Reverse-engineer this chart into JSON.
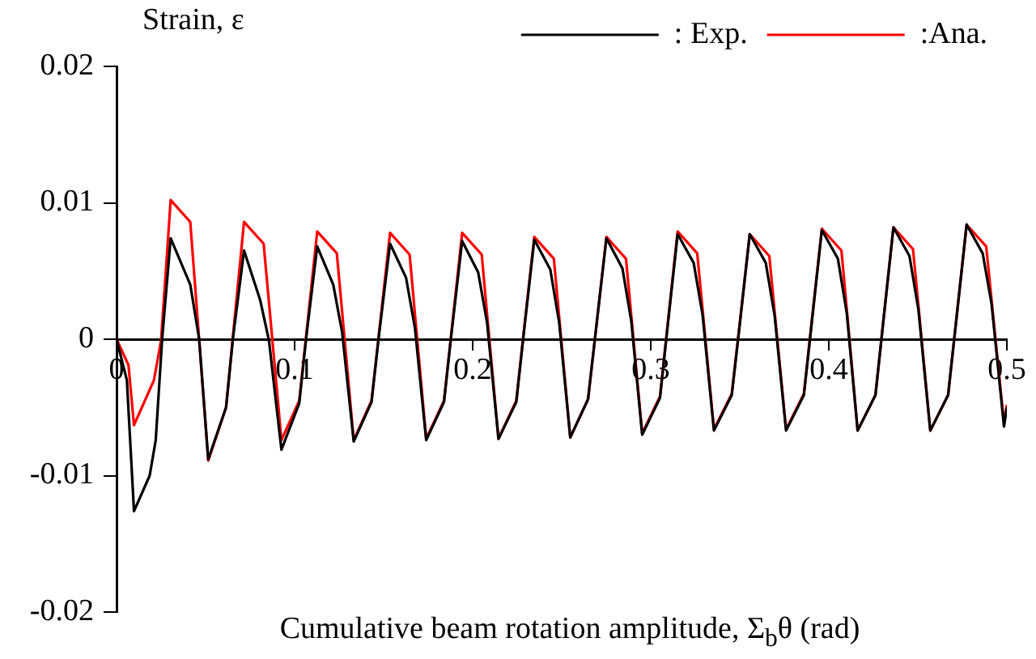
{
  "chart_data": {
    "type": "line",
    "ylabel": "Strain, ε",
    "xlabel": "Cumulative beam rotation amplitude, Σ$_{b}$θ (rad)",
    "xlim": [
      0,
      0.5
    ],
    "xticks": [
      0,
      0.1,
      0.2,
      0.3,
      0.4,
      0.5
    ],
    "ylim": [
      -0.02,
      0.02
    ],
    "yticks": [
      -0.02,
      -0.01,
      0,
      0.01,
      0.02
    ],
    "grid": false,
    "legend": "top right",
    "marker": "none",
    "line_style": "solid",
    "series": [
      {
        "name": ": Exp.",
        "color": "#000000",
        "x": [
          0,
          0.0058,
          0.0098,
          0.0186,
          0.022,
          0.0256,
          0.0304,
          0.0414,
          0.0464,
          0.0515,
          0.0615,
          0.0655,
          0.0716,
          0.0806,
          0.0856,
          0.0926,
          0.1026,
          0.1066,
          0.1127,
          0.1217,
          0.1267,
          0.1332,
          0.1432,
          0.1472,
          0.1536,
          0.1626,
          0.1676,
          0.1739,
          0.1839,
          0.1879,
          0.1941,
          0.2031,
          0.2081,
          0.2145,
          0.2245,
          0.2285,
          0.2346,
          0.2436,
          0.2486,
          0.2548,
          0.2648,
          0.2688,
          0.2751,
          0.2841,
          0.2891,
          0.2952,
          0.3052,
          0.3092,
          0.3151,
          0.3241,
          0.3291,
          0.3355,
          0.3455,
          0.3495,
          0.3556,
          0.3646,
          0.3696,
          0.376,
          0.386,
          0.39,
          0.3961,
          0.4051,
          0.4101,
          0.4162,
          0.4262,
          0.4302,
          0.4363,
          0.4453,
          0.4503,
          0.457,
          0.467,
          0.471,
          0.4774,
          0.4864,
          0.4914,
          0.4984,
          0.5
        ],
        "values": [
          0,
          -0.003,
          -0.0126,
          -0.01,
          -0.0074,
          0,
          0.0074,
          0.004,
          0,
          -0.0088,
          -0.005,
          0.0002,
          0.0065,
          0.0029,
          -0.0001,
          -0.0081,
          -0.0047,
          0.0002,
          0.0068,
          0.004,
          0.0005,
          -0.0075,
          -0.0046,
          0.0001,
          0.007,
          0.0045,
          0.0008,
          -0.0074,
          -0.0046,
          0.0002,
          0.0072,
          0.0049,
          0.0012,
          -0.0073,
          -0.0046,
          0.0002,
          0.0073,
          0.0051,
          0.0012,
          -0.0072,
          -0.0044,
          0.0002,
          0.0074,
          0.0052,
          0.0013,
          -0.007,
          -0.0043,
          0.0006,
          0.0077,
          0.0056,
          0.0018,
          -0.0067,
          -0.0041,
          0.0005,
          0.0077,
          0.0056,
          0.0017,
          -0.0067,
          -0.0041,
          0.0007,
          0.008,
          0.0059,
          0.0019,
          -0.0067,
          -0.0041,
          0.0008,
          0.0082,
          0.0061,
          0.0022,
          -0.0067,
          -0.0041,
          0.0007,
          0.0084,
          0.0063,
          0.0026,
          -0.0064,
          -0.005
        ]
      },
      {
        "name": ":Ana.",
        "color": "#ff0000",
        "x": [
          0,
          0.0067,
          0.0098,
          0.021,
          0.025,
          0.0304,
          0.0414,
          0.0444,
          0.0515,
          0.0615,
          0.0655,
          0.0716,
          0.0826,
          0.0856,
          0.0926,
          0.1026,
          0.1066,
          0.1127,
          0.1237,
          0.1267,
          0.1332,
          0.1432,
          0.1472,
          0.1536,
          0.1646,
          0.1676,
          0.1739,
          0.1839,
          0.1879,
          0.1941,
          0.2051,
          0.2081,
          0.2145,
          0.2245,
          0.2285,
          0.2346,
          0.2456,
          0.2486,
          0.2548,
          0.2648,
          0.2688,
          0.2751,
          0.2861,
          0.2891,
          0.2952,
          0.3052,
          0.3092,
          0.3151,
          0.3261,
          0.3291,
          0.3355,
          0.3455,
          0.3495,
          0.3556,
          0.3666,
          0.3696,
          0.376,
          0.386,
          0.39,
          0.3961,
          0.4071,
          0.4101,
          0.4162,
          0.4262,
          0.4302,
          0.4363,
          0.4473,
          0.4503,
          0.457,
          0.467,
          0.471,
          0.4774,
          0.4884,
          0.4914,
          0.4984,
          0.5
        ],
        "values": [
          0,
          -0.0019,
          -0.0063,
          -0.003,
          -0.0001,
          0.0102,
          0.0086,
          0.0034,
          -0.0089,
          -0.005,
          0.0004,
          0.0086,
          0.007,
          0.0027,
          -0.0074,
          -0.0045,
          0.0004,
          0.0079,
          0.0063,
          0.002,
          -0.0074,
          -0.0045,
          0.0002,
          0.0078,
          0.0062,
          0.0018,
          -0.0073,
          -0.0045,
          0.0003,
          0.0078,
          0.0062,
          0.0018,
          -0.0073,
          -0.0045,
          0.0003,
          0.0075,
          0.0059,
          0.0016,
          -0.0072,
          -0.0044,
          0.0002,
          0.0075,
          0.0059,
          0.0017,
          -0.0069,
          -0.0042,
          0.0007,
          0.0079,
          0.0063,
          0.0022,
          -0.0066,
          -0.004,
          0.0006,
          0.0077,
          0.0061,
          0.002,
          -0.0066,
          -0.004,
          0.0008,
          0.0081,
          0.0065,
          0.0022,
          -0.0067,
          -0.0041,
          0.0008,
          0.0082,
          0.0066,
          0.0025,
          -0.0067,
          -0.0041,
          0.0007,
          0.0084,
          0.0068,
          0.0029,
          -0.0062,
          -0.0048
        ]
      }
    ]
  }
}
